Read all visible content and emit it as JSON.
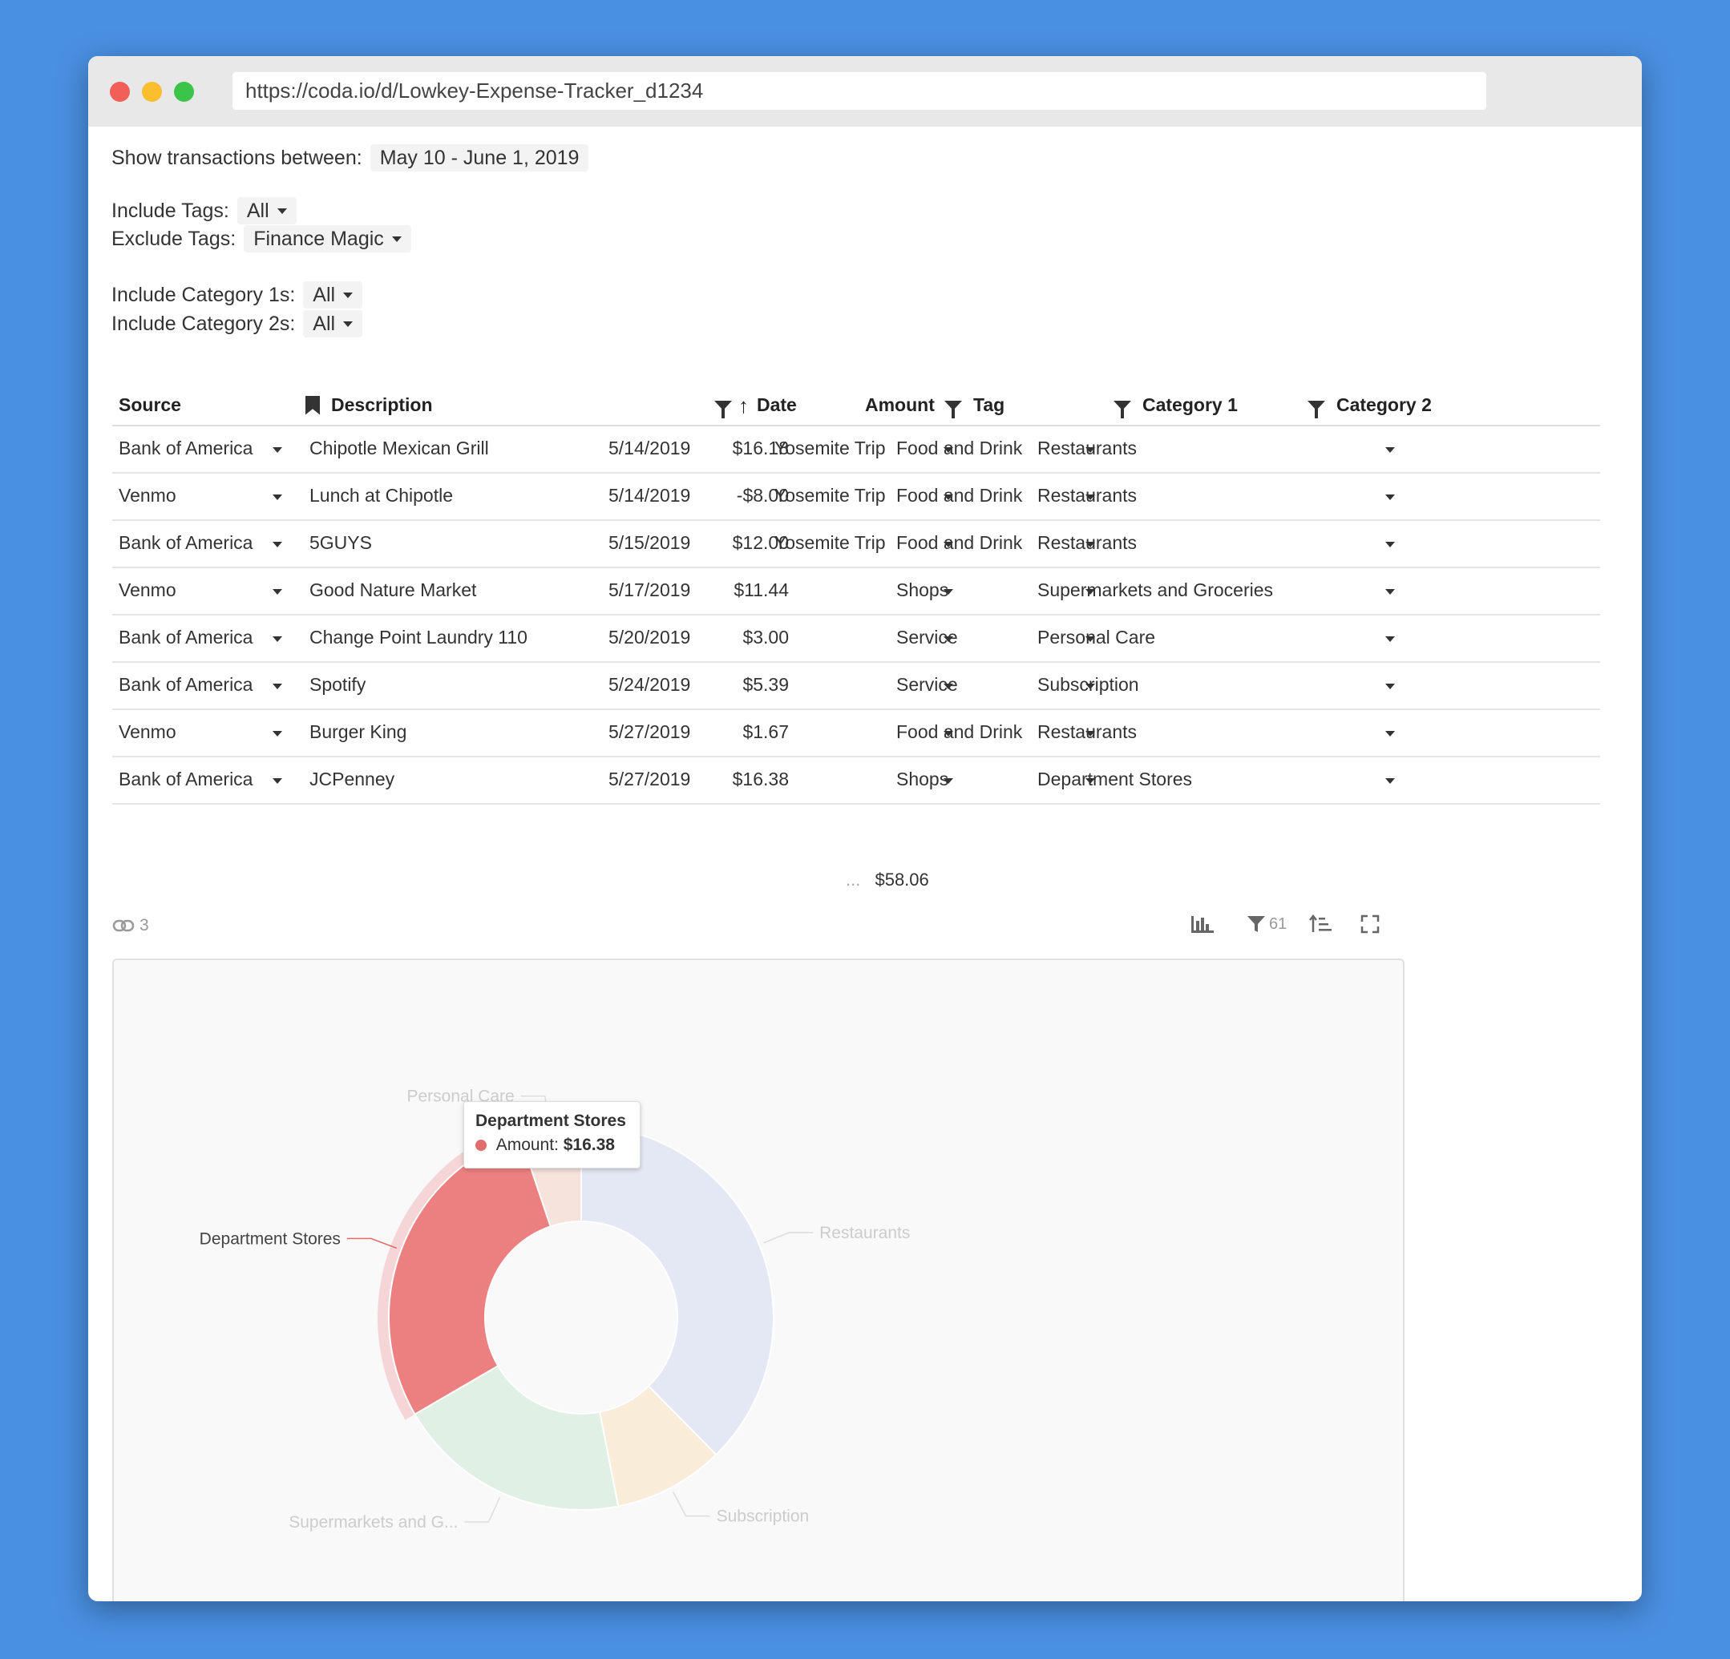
{
  "browser": {
    "url": "https://coda.io/d/Lowkey-Expense-Tracker_d1234"
  },
  "filters": {
    "date_label": "Show transactions between:",
    "date_value": "May 10 - June 1, 2019",
    "include_tags_label": "Include Tags:",
    "include_tags_value": "All",
    "exclude_tags_label": "Exclude Tags:",
    "exclude_tags_value": "Finance Magic",
    "include_cat1_label": "Include Category 1s:",
    "include_cat1_value": "All",
    "include_cat2_label": "Include Category 2s:",
    "include_cat2_value": "All"
  },
  "table": {
    "headers": {
      "source": "Source",
      "description": "Description",
      "date": "Date",
      "amount": "Amount",
      "tag": "Tag",
      "category1": "Category 1",
      "category2": "Category 2"
    },
    "rows": [
      {
        "source": "Bank of America",
        "description": "Chipotle Mexican Grill",
        "date": "5/14/2019",
        "amount": "$16.18",
        "tag": "Yosemite Trip",
        "category1": "Food and Drink",
        "category2": "Restaurants"
      },
      {
        "source": "Venmo",
        "description": "Lunch at Chipotle",
        "date": "5/14/2019",
        "amount": "-$8.00",
        "tag": "Yosemite Trip",
        "category1": "Food and Drink",
        "category2": "Restaurants"
      },
      {
        "source": "Bank of America",
        "description": "5GUYS",
        "date": "5/15/2019",
        "amount": "$12.00",
        "tag": "Yosemite Trip",
        "category1": "Food and Drink",
        "category2": "Restaurants"
      },
      {
        "source": "Venmo",
        "description": "Good Nature Market",
        "date": "5/17/2019",
        "amount": "$11.44",
        "tag": "",
        "category1": "Shops",
        "category2": "Supermarkets and Groceries"
      },
      {
        "source": "Bank of America",
        "description": "Change Point Laundry 110",
        "date": "5/20/2019",
        "amount": "$3.00",
        "tag": "",
        "category1": "Service",
        "category2": "Personal Care"
      },
      {
        "source": "Bank of America",
        "description": "Spotify",
        "date": "5/24/2019",
        "amount": "$5.39",
        "tag": "",
        "category1": "Service",
        "category2": "Subscription"
      },
      {
        "source": "Venmo",
        "description": "Burger King",
        "date": "5/27/2019",
        "amount": "$1.67",
        "tag": "",
        "category1": "Food and Drink",
        "category2": "Restaurants"
      },
      {
        "source": "Bank of America",
        "description": "JCPenney",
        "date": "5/27/2019",
        "amount": "$16.38",
        "tag": "",
        "category1": "Shops",
        "category2": "Department Stores"
      }
    ],
    "total_ellipsis": "...",
    "total": "$58.06"
  },
  "view_controls": {
    "link_count": "3",
    "filter_count": "61"
  },
  "chart_data": {
    "type": "pie",
    "donut": true,
    "categories": [
      "Restaurants",
      "Subscription",
      "Supermarkets and G...",
      "Department Stores",
      "Personal Care"
    ],
    "values": [
      21.85,
      5.39,
      11.44,
      16.38,
      3.0
    ],
    "colors": [
      "#e3e8f4",
      "#f9ecd8",
      "#e1f0e4",
      "#ec8080",
      "#f6e3dc"
    ],
    "highlighted": "Department Stores",
    "tooltip": {
      "title": "Department Stores",
      "label": "Amount:",
      "value": "$16.38"
    }
  }
}
